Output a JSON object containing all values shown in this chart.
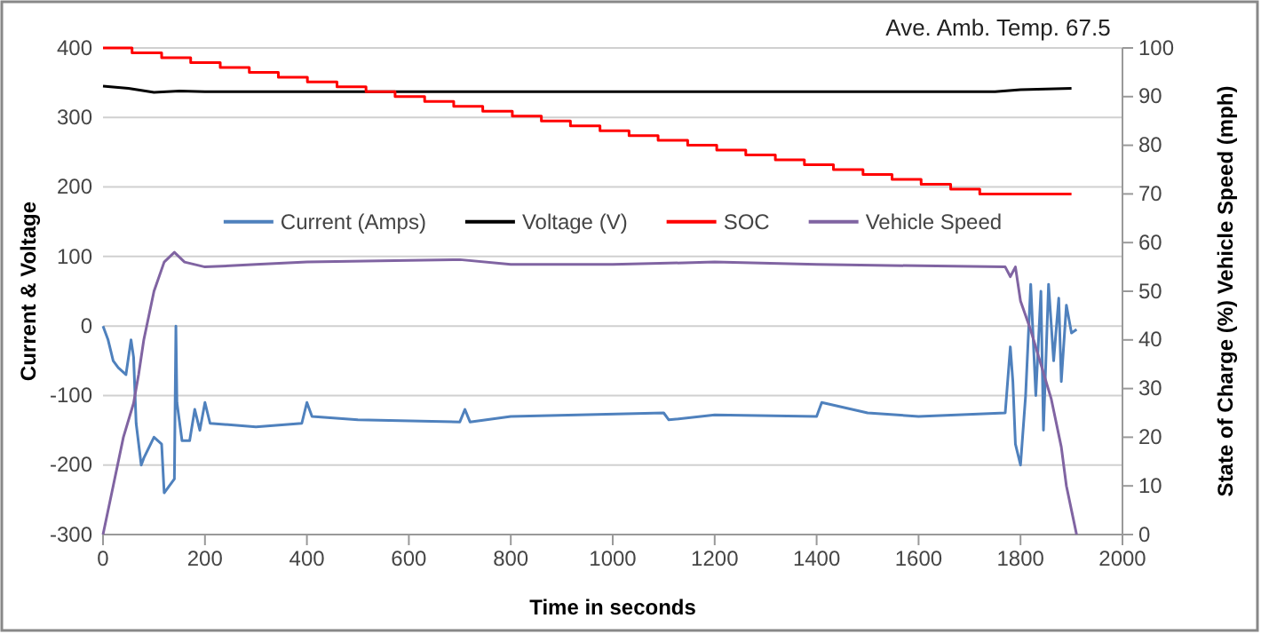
{
  "chart_data": {
    "type": "line",
    "xlabel": "Time in seconds",
    "ylabel": "Current & Voltage",
    "y2label": "State of Charge (%) Vehicle Speed (mph)",
    "annotations": [
      "Ave. Amb. Temp. 67.5"
    ],
    "xlim": [
      0,
      2000
    ],
    "xticks": [
      0,
      200,
      400,
      600,
      800,
      1000,
      1200,
      1400,
      1600,
      1800,
      2000
    ],
    "ylim": [
      -300,
      400
    ],
    "yticks": [
      -300,
      -200,
      -100,
      0,
      100,
      200,
      300,
      400
    ],
    "y2lim": [
      0,
      100
    ],
    "y2ticks": [
      0,
      10,
      20,
      30,
      40,
      50,
      60,
      70,
      80,
      90,
      100
    ],
    "grid": "y",
    "legend": "top",
    "marker": "none",
    "line_style": "solid",
    "series": [
      {
        "name": "Current (Amps)",
        "color": "#4f81bd",
        "x": [
          0,
          10,
          20,
          30,
          45,
          55,
          60,
          65,
          75,
          80,
          100,
          115,
          120,
          140,
          143,
          145,
          155,
          170,
          180,
          190,
          200,
          210,
          300,
          390,
          400,
          410,
          500,
          700,
          710,
          720,
          800,
          1100,
          1110,
          1200,
          1400,
          1410,
          1500,
          1600,
          1770,
          1780,
          1785,
          1790,
          1800,
          1810,
          1820,
          1830,
          1840,
          1845,
          1855,
          1865,
          1875,
          1880,
          1890,
          1900,
          1910
        ],
        "values": [
          0,
          -20,
          -50,
          -60,
          -70,
          -20,
          -45,
          -140,
          -200,
          -190,
          -160,
          -170,
          -240,
          -220,
          0,
          -110,
          -165,
          -165,
          -120,
          -150,
          -110,
          -140,
          -145,
          -140,
          -110,
          -130,
          -135,
          -138,
          -120,
          -138,
          -130,
          -125,
          -135,
          -128,
          -130,
          -110,
          -125,
          -130,
          -125,
          -30,
          -80,
          -170,
          -200,
          -100,
          60,
          -100,
          50,
          -150,
          60,
          -50,
          40,
          -80,
          30,
          -10,
          -5
        ]
      },
      {
        "name": "Voltage (V)",
        "color": "#000000",
        "x": [
          0,
          50,
          100,
          150,
          200,
          500,
          1000,
          1500,
          1750,
          1800,
          1900
        ],
        "values": [
          345,
          342,
          336,
          338,
          337,
          337,
          337,
          337,
          337,
          340,
          342
        ]
      },
      {
        "name": "SOC",
        "color": "#ff0000",
        "type": "step",
        "axis": "y2",
        "x": [
          0,
          57,
          115,
          172,
          230,
          287,
          344,
          401,
          459,
          516,
          573,
          631,
          688,
          745,
          803,
          860,
          917,
          975,
          1032,
          1089,
          1147,
          1204,
          1261,
          1319,
          1376,
          1433,
          1491,
          1548,
          1605,
          1663,
          1720,
          1900
        ],
        "values": [
          100,
          99,
          98,
          97,
          96,
          95,
          94,
          93,
          92,
          91,
          90,
          89,
          88,
          87,
          86,
          85,
          84,
          83,
          82,
          81,
          80,
          79,
          78,
          77,
          76,
          75,
          74,
          73,
          72,
          71,
          70,
          70
        ]
      },
      {
        "name": "Vehicle Speed",
        "color": "#8064a2",
        "axis": "y2",
        "x": [
          0,
          20,
          40,
          60,
          70,
          80,
          100,
          120,
          140,
          160,
          200,
          300,
          400,
          700,
          800,
          1000,
          1200,
          1400,
          1770,
          1780,
          1790,
          1800,
          1820,
          1840,
          1860,
          1880,
          1890,
          1900,
          1910
        ],
        "values": [
          0,
          10,
          20,
          27,
          33,
          40,
          50,
          56,
          58,
          56,
          55,
          55.5,
          56,
          56.5,
          55.5,
          55.5,
          56,
          55.5,
          55,
          53,
          55,
          48,
          42,
          35,
          28,
          18,
          10,
          5,
          0
        ]
      }
    ]
  }
}
